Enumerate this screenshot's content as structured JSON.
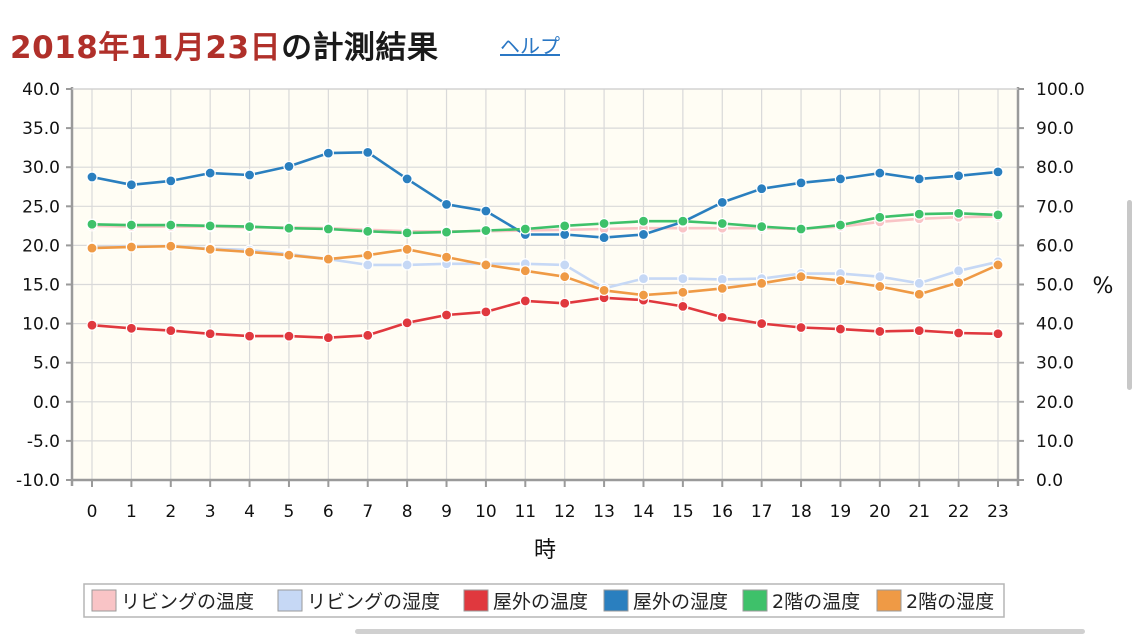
{
  "header": {
    "date_text": "2018年11月23日",
    "title_rest": "の計測結果",
    "help_link": "ヘルプ"
  },
  "chart_data": {
    "type": "line",
    "x": [
      0,
      1,
      2,
      3,
      4,
      5,
      6,
      7,
      8,
      9,
      10,
      11,
      12,
      13,
      14,
      15,
      16,
      17,
      18,
      19,
      20,
      21,
      22,
      23
    ],
    "xlabel": "時",
    "y_left": {
      "ylim": [
        -10,
        40
      ],
      "ticks": [
        "40.0",
        "35.0",
        "30.0",
        "25.0",
        "20.0",
        "15.0",
        "10.0",
        "5.0",
        "0.0",
        "-5.0",
        "-10.0"
      ]
    },
    "y_right": {
      "ylabel": "%",
      "ylim": [
        0,
        100
      ],
      "ticks": [
        "100.0",
        "90.0",
        "80.0",
        "70.0",
        "60.0",
        "50.0",
        "40.0",
        "30.0",
        "20.0",
        "10.0",
        "0.0"
      ]
    },
    "grid": true,
    "background": "#fffdf4",
    "legend_position": "bottom",
    "series": [
      {
        "name": "リビングの温度",
        "axis": "left",
        "color": "#f9c4c6",
        "values": [
          22.5,
          22.4,
          22.4,
          22.4,
          22.3,
          22.3,
          22.2,
          22.0,
          21.8,
          21.8,
          21.8,
          21.9,
          22.0,
          22.1,
          22.2,
          22.2,
          22.2,
          22.2,
          22.1,
          22.4,
          23.0,
          23.4,
          23.6,
          23.7
        ]
      },
      {
        "name": "リビングの湿度",
        "axis": "right",
        "color": "#c6d8f5",
        "values": [
          59.5,
          59.8,
          59.8,
          59.2,
          58.8,
          57.8,
          56.5,
          55.0,
          55.0,
          55.3,
          55.3,
          55.3,
          55.0,
          49.0,
          51.5,
          51.5,
          51.3,
          51.5,
          52.8,
          52.8,
          52.0,
          50.3,
          53.5,
          55.8
        ]
      },
      {
        "name": "屋外の温度",
        "axis": "left",
        "color": "#e0383e",
        "values": [
          9.8,
          9.4,
          9.1,
          8.7,
          8.4,
          8.4,
          8.2,
          8.5,
          10.1,
          11.1,
          11.5,
          12.9,
          12.6,
          13.3,
          13.0,
          12.2,
          10.8,
          10.0,
          9.5,
          9.3,
          9.0,
          9.1,
          8.8,
          8.7
        ]
      },
      {
        "name": "屋外の湿度",
        "axis": "right",
        "color": "#2a7fbf",
        "values": [
          77.5,
          75.5,
          76.5,
          78.5,
          78.0,
          80.2,
          83.6,
          83.8,
          77.0,
          70.5,
          68.8,
          62.8,
          62.8,
          62.0,
          62.8,
          66.0,
          71.0,
          74.5,
          76.0,
          77.0,
          78.5,
          77.0,
          77.8,
          78.8
        ]
      },
      {
        "name": "2階の温度",
        "axis": "left",
        "color": "#3ec16a",
        "values": [
          22.7,
          22.6,
          22.6,
          22.5,
          22.4,
          22.2,
          22.1,
          21.8,
          21.6,
          21.7,
          21.9,
          22.1,
          22.5,
          22.8,
          23.1,
          23.1,
          22.8,
          22.4,
          22.1,
          22.6,
          23.6,
          24.0,
          24.1,
          23.9
        ]
      },
      {
        "name": "2階の湿度",
        "axis": "right",
        "color": "#ef9a45",
        "values": [
          59.3,
          59.6,
          59.8,
          59.0,
          58.3,
          57.5,
          56.5,
          57.5,
          59.0,
          57.0,
          55.0,
          53.5,
          52.0,
          48.5,
          47.3,
          48.0,
          49.0,
          50.3,
          52.0,
          51.0,
          49.5,
          47.5,
          50.5,
          55.0
        ]
      }
    ]
  }
}
